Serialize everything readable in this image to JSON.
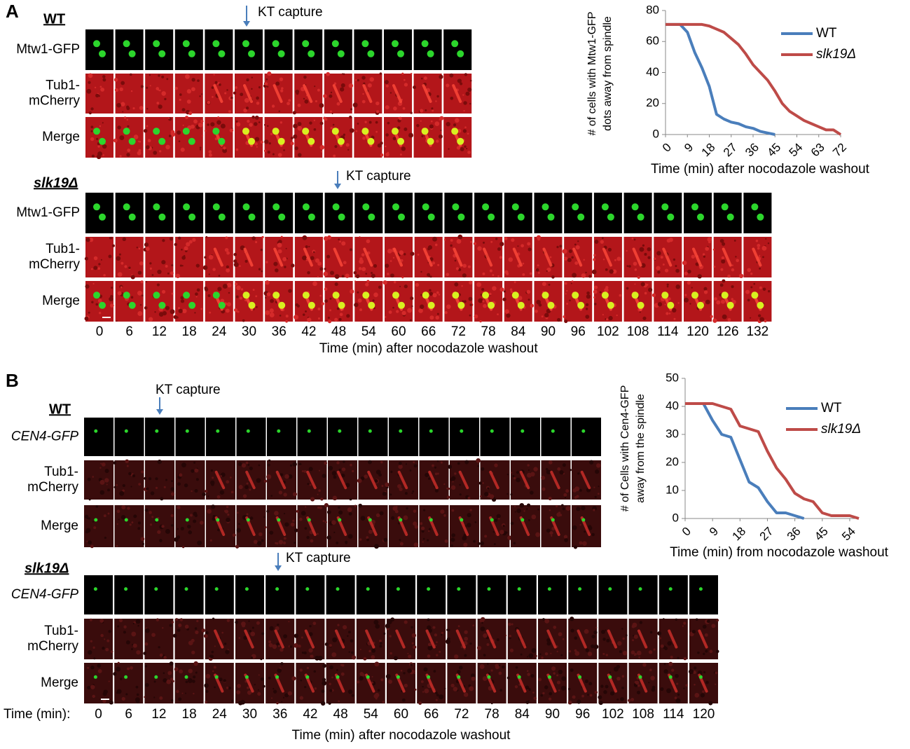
{
  "panel_a": {
    "label": "A",
    "wt": {
      "title": "WT",
      "kt_capture": "KT capture",
      "rows": [
        "Mtw1-GFP",
        [
          "Tub1-",
          "mCherry"
        ],
        "Merge"
      ]
    },
    "slk19": {
      "title": "slk19Δ",
      "kt_capture": "KT capture",
      "rows": [
        "Mtw1-GFP",
        [
          "Tub1-",
          "mCherry"
        ],
        "Merge"
      ],
      "times": [
        0,
        6,
        12,
        18,
        24,
        30,
        36,
        42,
        48,
        54,
        60,
        66,
        72,
        78,
        84,
        90,
        96,
        102,
        108,
        114,
        120,
        126,
        132
      ],
      "time_title": "Time (min) after nocodazole washout"
    }
  },
  "panel_b": {
    "label": "B",
    "wt": {
      "title": "WT",
      "kt_capture": "KT capture",
      "rows": [
        "CEN4-GFP",
        [
          "Tub1-",
          "mCherry"
        ],
        "Merge"
      ]
    },
    "slk19": {
      "title": "slk19Δ",
      "kt_capture": "KT capture",
      "rows": [
        "CEN4-GFP",
        [
          "Tub1-",
          "mCherry"
        ],
        "Merge"
      ],
      "time_prefix": "Time (min):",
      "times": [
        0,
        6,
        12,
        18,
        24,
        30,
        36,
        42,
        48,
        54,
        60,
        66,
        72,
        78,
        84,
        90,
        96,
        102,
        108,
        114,
        120
      ],
      "time_title": "Time (min) after nocodazole washout"
    }
  },
  "chart_data": [
    {
      "type": "line",
      "y_label": [
        "# of cells with Mtw1-GFP",
        "dots away from  spindle"
      ],
      "x_label": "Time (min) after nocodazole washout",
      "x": [
        0,
        3,
        6,
        9,
        12,
        15,
        18,
        21,
        24,
        27,
        30,
        33,
        36,
        39,
        42,
        45,
        48,
        51,
        54,
        57,
        60,
        63,
        66,
        69,
        72
      ],
      "xlim": [
        0,
        72
      ],
      "xticks": [
        0,
        9,
        18,
        27,
        36,
        45,
        54,
        63,
        72
      ],
      "ylim": [
        0,
        80
      ],
      "yticks": [
        0,
        20,
        40,
        60,
        80
      ],
      "series": [
        {
          "name": "WT",
          "color": "#4a7ebb",
          "values": [
            71,
            71,
            71,
            66,
            53,
            43,
            31,
            13,
            10,
            8,
            7,
            5,
            4,
            2,
            1,
            0,
            null,
            null,
            null,
            null,
            null,
            null,
            null,
            null,
            null
          ]
        },
        {
          "name": "slk19Δ",
          "color": "#be4b48",
          "values": [
            71,
            71,
            71,
            71,
            71,
            71,
            70,
            68,
            66,
            62,
            58,
            52,
            45,
            40,
            35,
            28,
            20,
            15,
            12,
            9,
            7,
            5,
            3,
            3,
            0
          ]
        }
      ]
    },
    {
      "type": "line",
      "y_label": [
        "# of Cells with Cen4-GFP",
        "away from the spindle"
      ],
      "x_label": "Time (min) from nocodazole washout",
      "x": [
        0,
        3,
        6,
        9,
        12,
        15,
        18,
        21,
        24,
        27,
        30,
        33,
        36,
        39,
        42,
        45,
        48,
        51,
        54,
        57
      ],
      "xlim": [
        0,
        57
      ],
      "xticks": [
        0,
        9,
        18,
        27,
        36,
        45,
        54
      ],
      "ylim": [
        0,
        50
      ],
      "yticks": [
        0,
        10,
        20,
        30,
        40,
        50
      ],
      "series": [
        {
          "name": "WT",
          "color": "#4a7ebb",
          "values": [
            41,
            41,
            41,
            35,
            30,
            29,
            21,
            13,
            11,
            6,
            2,
            2,
            1,
            0,
            null,
            null,
            null,
            null,
            null,
            null
          ]
        },
        {
          "name": "slk19Δ",
          "color": "#be4b48",
          "values": [
            41,
            41,
            41,
            41,
            40,
            39,
            33,
            32,
            31,
            24,
            18,
            14,
            9,
            7,
            6,
            2,
            1,
            1,
            1,
            0
          ]
        }
      ]
    }
  ]
}
